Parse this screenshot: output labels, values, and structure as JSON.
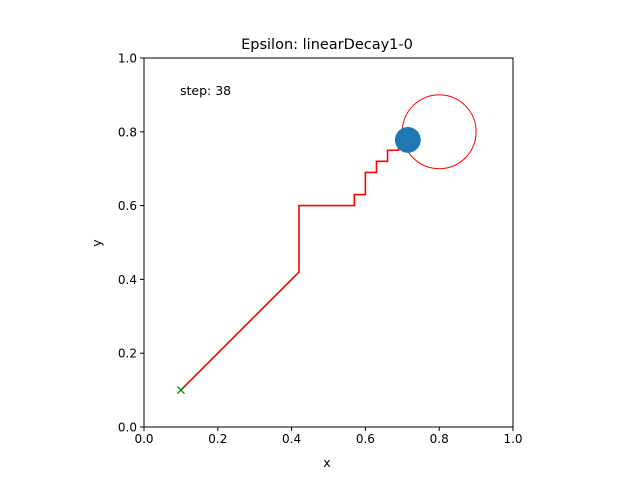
{
  "chart_data": {
    "type": "line",
    "title": "Epsilon: linearDecay1-0",
    "xlabel": "x",
    "ylabel": "y",
    "xlim": [
      0.0,
      1.0
    ],
    "ylim": [
      0.0,
      1.0
    ],
    "xticks": [
      0.0,
      0.2,
      0.4,
      0.6,
      0.8,
      1.0
    ],
    "yticks": [
      0.0,
      0.2,
      0.4,
      0.6,
      0.8,
      1.0
    ],
    "xtick_labels": [
      "0.0",
      "0.2",
      "0.4",
      "0.6",
      "0.8",
      "1.0"
    ],
    "ytick_labels": [
      "0.0",
      "0.2",
      "0.4",
      "0.6",
      "0.8",
      "1.0"
    ],
    "grid": false,
    "legend": false,
    "annotation": "step: 38",
    "path": {
      "color": "#ff0000",
      "x": [
        0.1,
        0.42,
        0.42,
        0.57,
        0.57,
        0.6,
        0.6,
        0.63,
        0.63,
        0.66,
        0.66,
        0.69,
        0.69,
        0.72
      ],
      "y": [
        0.1,
        0.42,
        0.6,
        0.6,
        0.63,
        0.63,
        0.69,
        0.69,
        0.72,
        0.72,
        0.75,
        0.75,
        0.78,
        0.78
      ]
    },
    "start_marker": {
      "x": 0.1,
      "y": 0.1,
      "symbol": "x",
      "color": "#008000"
    },
    "agent": {
      "x": 0.715,
      "y": 0.778,
      "radius": 0.035,
      "color": "#1f77b4"
    },
    "goal_region": {
      "x": 0.8,
      "y": 0.8,
      "radius": 0.1,
      "color": "#ff0000"
    }
  }
}
